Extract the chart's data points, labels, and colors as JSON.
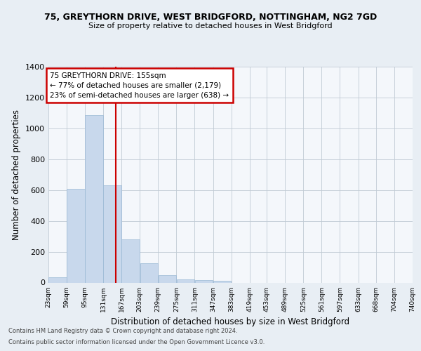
{
  "title": "75, GREYTHORN DRIVE, WEST BRIDGFORD, NOTTINGHAM, NG2 7GD",
  "subtitle": "Size of property relative to detached houses in West Bridgford",
  "xlabel": "Distribution of detached houses by size in West Bridgford",
  "ylabel": "Number of detached properties",
  "bar_color": "#c8d8ec",
  "bar_edge_color": "#99b8d4",
  "property_line_x": 155,
  "property_line_color": "#cc0000",
  "annotation_box_color": "#cc0000",
  "annotation_lines": [
    "75 GREYTHORN DRIVE: 155sqm",
    "← 77% of detached houses are smaller (2,179)",
    "23% of semi-detached houses are larger (638) →"
  ],
  "bin_edges": [
    23,
    59,
    95,
    131,
    167,
    203,
    239,
    275,
    311,
    347,
    383,
    419,
    453,
    489,
    525,
    561,
    597,
    633,
    668,
    704,
    740
  ],
  "bin_counts": [
    35,
    610,
    1085,
    630,
    280,
    125,
    47,
    22,
    18,
    10,
    0,
    0,
    0,
    0,
    0,
    0,
    0,
    0,
    0,
    0
  ],
  "ylim": [
    0,
    1400
  ],
  "yticks": [
    0,
    200,
    400,
    600,
    800,
    1000,
    1200,
    1400
  ],
  "footer_line1": "Contains HM Land Registry data © Crown copyright and database right 2024.",
  "footer_line2": "Contains public sector information licensed under the Open Government Licence v3.0.",
  "bg_color": "#e8eef4",
  "plot_bg_color": "#f4f7fb"
}
